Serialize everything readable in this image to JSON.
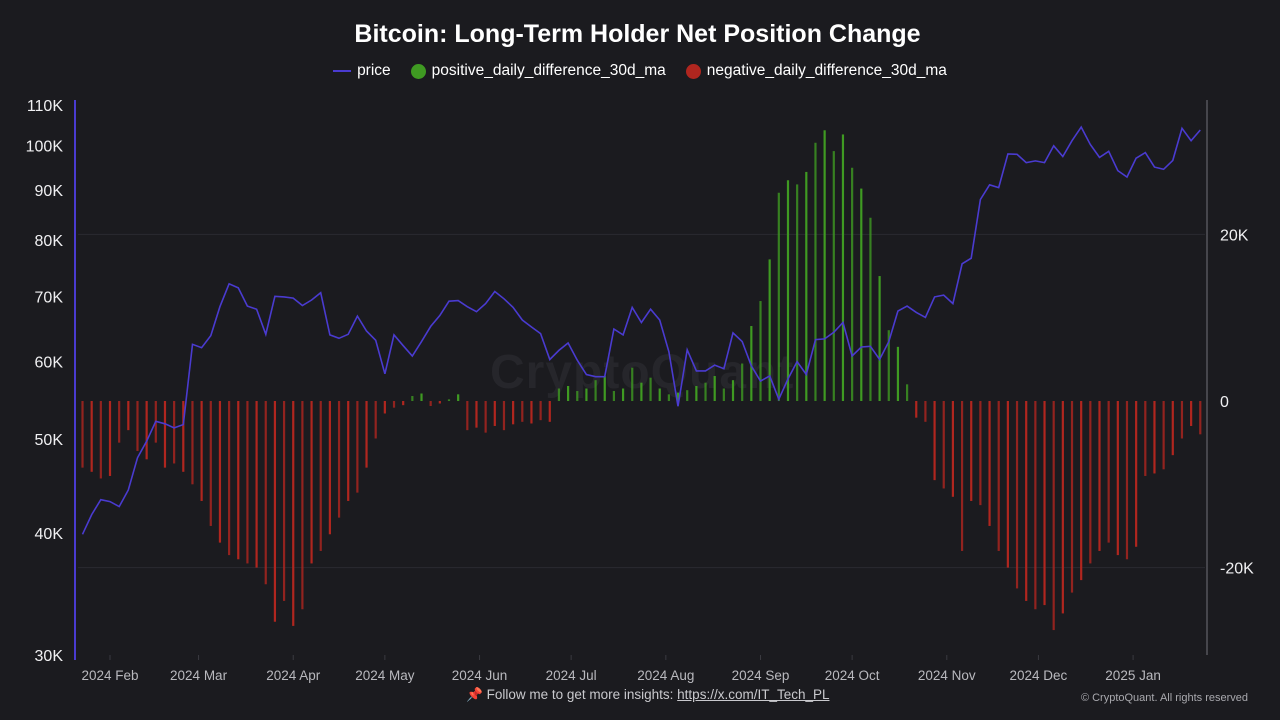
{
  "chart_data": {
    "type": "bar+line",
    "title": "Bitcoin: Long-Term Holder Net Position Change",
    "legend_position": "top-center",
    "legend": [
      "price",
      "positive_daily_difference_30d_ma",
      "negative_daily_difference_30d_ma"
    ],
    "colors": {
      "price": "#4a3bd0",
      "positive": "#3f9a22",
      "negative": "#b0261f",
      "background": "#1b1b1f"
    },
    "left_axis": {
      "scale": "log",
      "ylim": [
        30000,
        110000
      ],
      "ticks": [
        30000,
        40000,
        50000,
        60000,
        70000,
        80000,
        90000,
        100000,
        110000
      ],
      "tick_labels": [
        "30K",
        "40K",
        "50K",
        "60K",
        "70K",
        "80K",
        "90K",
        "100K",
        "110K"
      ]
    },
    "right_axis": {
      "scale": "linear",
      "ylim": [
        -30500,
        36000
      ],
      "ticks": [
        -20000,
        0,
        20000
      ],
      "tick_labels": [
        "-20K",
        "0",
        "20K"
      ]
    },
    "grid": "horizontal at right-axis ticks",
    "x_tick_labels": [
      {
        "date": "2024-02-01",
        "label": "2024 Feb"
      },
      {
        "date": "2024-03-01",
        "label": "2024 Mar"
      },
      {
        "date": "2024-04-01",
        "label": "2024 Apr"
      },
      {
        "date": "2024-05-01",
        "label": "2024 May"
      },
      {
        "date": "2024-06-01",
        "label": "2024 Jun"
      },
      {
        "date": "2024-07-01",
        "label": "2024 Jul"
      },
      {
        "date": "2024-08-01",
        "label": "2024 Aug"
      },
      {
        "date": "2024-09-01",
        "label": "2024 Sep"
      },
      {
        "date": "2024-10-01",
        "label": "2024 Oct"
      },
      {
        "date": "2024-11-01",
        "label": "2024 Nov"
      },
      {
        "date": "2024-12-01",
        "label": "2024 Dec"
      },
      {
        "date": "2025-01-01",
        "label": "2025 Jan"
      }
    ],
    "x": [
      "2024-01-23",
      "2024-01-26",
      "2024-01-29",
      "2024-02-01",
      "2024-02-04",
      "2024-02-07",
      "2024-02-10",
      "2024-02-13",
      "2024-02-16",
      "2024-02-19",
      "2024-02-22",
      "2024-02-25",
      "2024-02-28",
      "2024-03-02",
      "2024-03-05",
      "2024-03-08",
      "2024-03-11",
      "2024-03-14",
      "2024-03-17",
      "2024-03-20",
      "2024-03-23",
      "2024-03-26",
      "2024-03-29",
      "2024-04-01",
      "2024-04-04",
      "2024-04-07",
      "2024-04-10",
      "2024-04-13",
      "2024-04-16",
      "2024-04-19",
      "2024-04-22",
      "2024-04-25",
      "2024-04-28",
      "2024-05-01",
      "2024-05-04",
      "2024-05-07",
      "2024-05-10",
      "2024-05-13",
      "2024-05-16",
      "2024-05-19",
      "2024-05-22",
      "2024-05-25",
      "2024-05-28",
      "2024-05-31",
      "2024-06-03",
      "2024-06-06",
      "2024-06-09",
      "2024-06-12",
      "2024-06-15",
      "2024-06-18",
      "2024-06-21",
      "2024-06-24",
      "2024-06-27",
      "2024-06-30",
      "2024-07-03",
      "2024-07-06",
      "2024-07-09",
      "2024-07-12",
      "2024-07-15",
      "2024-07-18",
      "2024-07-21",
      "2024-07-24",
      "2024-07-27",
      "2024-07-30",
      "2024-08-02",
      "2024-08-05",
      "2024-08-08",
      "2024-08-11",
      "2024-08-14",
      "2024-08-17",
      "2024-08-20",
      "2024-08-23",
      "2024-08-26",
      "2024-08-29",
      "2024-09-01",
      "2024-09-04",
      "2024-09-07",
      "2024-09-10",
      "2024-09-13",
      "2024-09-16",
      "2024-09-19",
      "2024-09-22",
      "2024-09-25",
      "2024-09-28",
      "2024-10-01",
      "2024-10-04",
      "2024-10-07",
      "2024-10-10",
      "2024-10-13",
      "2024-10-16",
      "2024-10-19",
      "2024-10-22",
      "2024-10-25",
      "2024-10-28",
      "2024-10-31",
      "2024-11-03",
      "2024-11-06",
      "2024-11-09",
      "2024-11-12",
      "2024-11-15",
      "2024-11-18",
      "2024-11-21",
      "2024-11-24",
      "2024-11-27",
      "2024-11-30",
      "2024-12-03",
      "2024-12-06",
      "2024-12-09",
      "2024-12-12",
      "2024-12-15",
      "2024-12-18",
      "2024-12-21",
      "2024-12-24",
      "2024-12-27",
      "2024-12-30",
      "2025-01-02",
      "2025-01-05",
      "2025-01-08",
      "2025-01-11",
      "2025-01-14",
      "2025-01-17",
      "2025-01-20",
      "2025-01-23"
    ],
    "series": [
      {
        "name": "price",
        "axis": "left",
        "type": "line",
        "values": [
          39900,
          41800,
          43300,
          43100,
          42600,
          44300,
          47800,
          49700,
          52100,
          51800,
          51300,
          51700,
          62500,
          62000,
          63800,
          68300,
          72100,
          71400,
          68400,
          67900,
          64000,
          70000,
          69900,
          69700,
          68500,
          69400,
          70600,
          63900,
          63400,
          64000,
          66800,
          64500,
          63100,
          58300,
          63900,
          62300,
          60800,
          62900,
          65200,
          66900,
          69200,
          69300,
          68300,
          67500,
          68800,
          70800,
          69600,
          68200,
          66200,
          65100,
          64100,
          60300,
          61600,
          62700,
          60200,
          58200,
          57900,
          57900,
          64800,
          63900,
          68200,
          65800,
          67900,
          66200,
          61400,
          54000,
          61700,
          58700,
          58700,
          59500,
          59000,
          64200,
          62900,
          59400,
          57300,
          58000,
          54900,
          57600,
          60000,
          58200,
          63200,
          63300,
          64300,
          65800,
          60800,
          62100,
          62200,
          60300,
          62900,
          67600,
          68400,
          67400,
          66600,
          69900,
          70200,
          68800,
          75600,
          76600,
          88000,
          91100,
          90500,
          98000,
          97900,
          96000,
          96400,
          96000,
          99900,
          97400,
          101100,
          104400,
          100200,
          97200,
          98600,
          94200,
          92800,
          97000,
          98300,
          95000,
          94500,
          96500,
          104100,
          101100,
          103700
        ]
      },
      {
        "name": "daily_difference_30d_ma",
        "axis": "right",
        "type": "bar",
        "values": [
          -8000,
          -8500,
          -9300,
          -9000,
          -5000,
          -3500,
          -6000,
          -7000,
          -5000,
          -8000,
          -7500,
          -8500,
          -10000,
          -12000,
          -15000,
          -17000,
          -18500,
          -19000,
          -19500,
          -20000,
          -22000,
          -26500,
          -24000,
          -27000,
          -25000,
          -19500,
          -18000,
          -16000,
          -14000,
          -12000,
          -11000,
          -8000,
          -4500,
          -1500,
          -800,
          -500,
          600,
          900,
          -600,
          -300,
          200,
          800,
          -3500,
          -3200,
          -3800,
          -3000,
          -3500,
          -2800,
          -2500,
          -2700,
          -2300,
          -2500,
          1500,
          1800,
          1200,
          1500,
          2500,
          3000,
          1200,
          1500,
          4000,
          2200,
          2800,
          1500,
          800,
          1000,
          1300,
          1800,
          2200,
          3000,
          1500,
          2500,
          4500,
          9000,
          12000,
          17000,
          25000,
          26500,
          26000,
          27500,
          31000,
          32500,
          30000,
          32000,
          28000,
          25500,
          22000,
          15000,
          8500,
          6500,
          2000,
          -2000,
          -2500,
          -9500,
          -10500,
          -11500,
          -18000,
          -12000,
          -12500,
          -15000,
          -18000,
          -20000,
          -22500,
          -24000,
          -25000,
          -24500,
          -27500,
          -25500,
          -23000,
          -21500,
          -19500,
          -18000,
          -17000,
          -18500,
          -19000,
          -17500,
          -9000,
          -8700,
          -8200,
          -6500,
          -4500,
          -3000,
          -4000
        ]
      }
    ]
  },
  "watermark": "CryptoQuant",
  "footer": {
    "pin_icon": "pushpin-icon",
    "text": "Follow me to get more insights:",
    "link": "https://x.com/IT_Tech_PL"
  },
  "copyright": "© CryptoQuant. All rights reserved"
}
